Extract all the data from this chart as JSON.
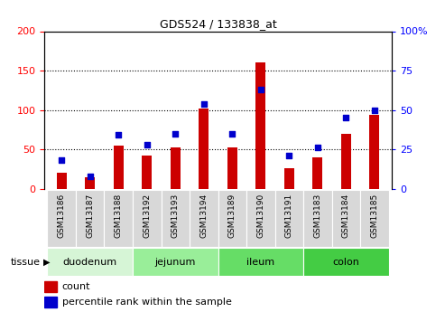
{
  "title": "GDS524 / 133838_at",
  "categories": [
    "GSM13186",
    "GSM13187",
    "GSM13188",
    "GSM13192",
    "GSM13193",
    "GSM13194",
    "GSM13189",
    "GSM13190",
    "GSM13191",
    "GSM13183",
    "GSM13184",
    "GSM13185"
  ],
  "counts": [
    20,
    15,
    55,
    42,
    52,
    102,
    52,
    160,
    26,
    40,
    70,
    94
  ],
  "percentiles": [
    18,
    8,
    34,
    28,
    35,
    54,
    35,
    63,
    21,
    26,
    45,
    50
  ],
  "tissue_groups": [
    {
      "label": "duodenum",
      "start": 0,
      "end": 3,
      "color": "#d6f5d6"
    },
    {
      "label": "jejunum",
      "start": 3,
      "end": 6,
      "color": "#99ee99"
    },
    {
      "label": "ileum",
      "start": 6,
      "end": 9,
      "color": "#66dd66"
    },
    {
      "label": "colon",
      "start": 9,
      "end": 12,
      "color": "#44cc44"
    }
  ],
  "bar_color": "#cc0000",
  "dot_color": "#0000cc",
  "left_ylim": [
    0,
    200
  ],
  "right_ylim": [
    0,
    100
  ],
  "left_yticks": [
    0,
    50,
    100,
    150,
    200
  ],
  "right_yticks": [
    0,
    25,
    50,
    75,
    100
  ],
  "right_yticklabels": [
    "0",
    "25",
    "50",
    "75",
    "100%"
  ],
  "grid_values": [
    50,
    100,
    150
  ],
  "legend_count_label": "count",
  "legend_pct_label": "percentile rank within the sample",
  "tissue_label": "tissue",
  "sample_bg_color": "#d8d8d8",
  "bar_width": 0.35
}
